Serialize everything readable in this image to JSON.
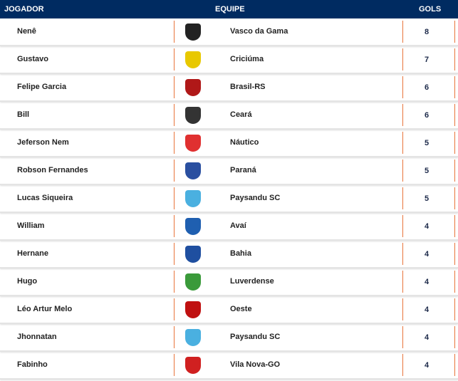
{
  "header": {
    "jogador": "JOGADOR",
    "equipe": "EQUIPE",
    "gols": "GOLS"
  },
  "colors": {
    "header_bg": "#002b61",
    "separator": "#e8743b"
  },
  "rows": [
    {
      "player": "Nenê",
      "team": "Vasco da Gama",
      "goals": "8",
      "logo": "vasco-crest",
      "logo_color": "#222222"
    },
    {
      "player": "Gustavo",
      "team": "Criciúma",
      "goals": "7",
      "logo": "criciuma-crest",
      "logo_color": "#e8c800"
    },
    {
      "player": "Felipe Garcia",
      "team": "Brasil-RS",
      "goals": "6",
      "logo": "brasil-rs-crest",
      "logo_color": "#b01818"
    },
    {
      "player": "Bill",
      "team": "Ceará",
      "goals": "6",
      "logo": "ceara-crest",
      "logo_color": "#333333"
    },
    {
      "player": "Jeferson Nem",
      "team": "Náutico",
      "goals": "5",
      "logo": "nautico-crest",
      "logo_color": "#e03030"
    },
    {
      "player": "Robson Fernandes",
      "team": "Paraná",
      "goals": "5",
      "logo": "parana-crest",
      "logo_color": "#2a4fa0"
    },
    {
      "player": "Lucas Siqueira",
      "team": "Paysandu SC",
      "goals": "5",
      "logo": "paysandu-crest",
      "logo_color": "#4ab0e0"
    },
    {
      "player": "William",
      "team": "Avaí",
      "goals": "4",
      "logo": "avai-crest",
      "logo_color": "#1f5fb0"
    },
    {
      "player": "Hernane",
      "team": "Bahia",
      "goals": "4",
      "logo": "bahia-crest",
      "logo_color": "#1f4fa0"
    },
    {
      "player": "Hugo",
      "team": "Luverdense",
      "goals": "4",
      "logo": "luverdense-crest",
      "logo_color": "#3a9a3a"
    },
    {
      "player": "Léo Artur Melo",
      "team": "Oeste",
      "goals": "4",
      "logo": "oeste-crest",
      "logo_color": "#c01010"
    },
    {
      "player": "Jhonnatan",
      "team": "Paysandu SC",
      "goals": "4",
      "logo": "paysandu-crest",
      "logo_color": "#4ab0e0"
    },
    {
      "player": "Fabinho",
      "team": "Vila Nova-GO",
      "goals": "4",
      "logo": "vila-nova-crest",
      "logo_color": "#d02020"
    }
  ]
}
